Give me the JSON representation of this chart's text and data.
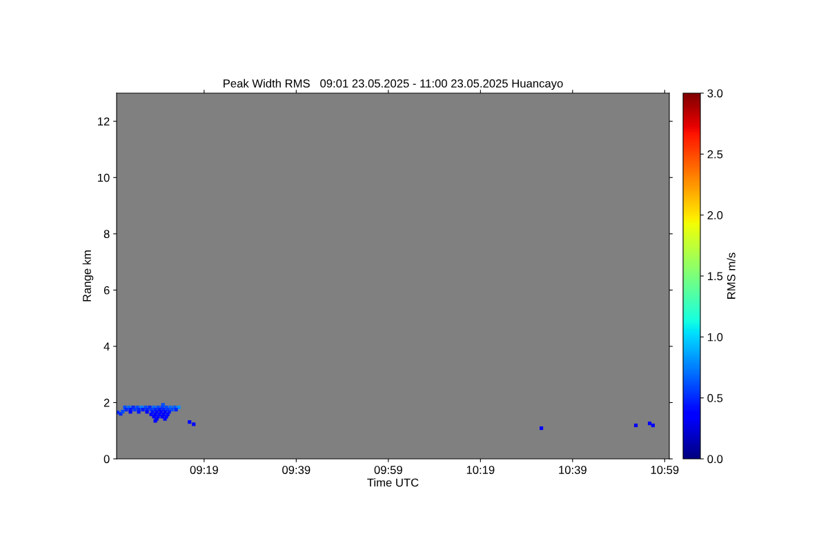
{
  "chart_data": {
    "type": "scatter",
    "title": "Peak Width RMS   09:01 23.05.2025 - 11:00 23.05.2025 Huancayo",
    "xlabel": "Time UTC",
    "ylabel": "Range km",
    "clabel": "RMS m/s",
    "xlim": [
      9.0,
      11.0
    ],
    "xticks": [
      {
        "value": 9.3167,
        "label": "09:19"
      },
      {
        "value": 9.65,
        "label": "09:39"
      },
      {
        "value": 9.9833,
        "label": "09:59"
      },
      {
        "value": 10.3167,
        "label": "10:19"
      },
      {
        "value": 10.65,
        "label": "10:39"
      },
      {
        "value": 10.9833,
        "label": "10:59"
      }
    ],
    "ylim": [
      0,
      13
    ],
    "yticks": [
      0,
      2,
      4,
      6,
      8,
      10,
      12
    ],
    "clim": [
      0,
      3
    ],
    "cticks": [
      {
        "value": 0,
        "label": "0.0"
      },
      {
        "value": 0.5,
        "label": "0.5"
      },
      {
        "value": 1,
        "label": "1.0"
      },
      {
        "value": 1.5,
        "label": "1.5"
      },
      {
        "value": 2,
        "label": "2.0"
      },
      {
        "value": 2.5,
        "label": "2.5"
      },
      {
        "value": 3,
        "label": "3.0"
      }
    ],
    "marker": "square",
    "grid": false,
    "legend": false,
    "series": [
      {
        "x": [
          9.003,
          9.015,
          9.022,
          9.03,
          9.045,
          9.06,
          9.075,
          9.09,
          9.105,
          9.12,
          9.135,
          9.15,
          9.165,
          9.18,
          9.195,
          9.21,
          9.225,
          9.035,
          9.05,
          9.065,
          9.08,
          9.095,
          9.11,
          9.125,
          9.14,
          9.155,
          9.17,
          9.185,
          9.2,
          9.215,
          9.05,
          9.08,
          9.11,
          9.13,
          9.145,
          9.16,
          9.175,
          9.19,
          9.125,
          9.14,
          9.155,
          9.17,
          9.185,
          9.135,
          9.15,
          9.165,
          9.18,
          9.145,
          9.175,
          9.14,
          9.168,
          9.264,
          9.279,
          10.537,
          10.879,
          10.929,
          10.941
        ],
        "values": [
          1.65,
          1.6,
          1.68,
          1.83,
          1.83,
          1.83,
          1.83,
          1.83,
          1.83,
          1.83,
          1.83,
          1.83,
          1.83,
          1.83,
          1.83,
          1.83,
          1.83,
          1.75,
          1.75,
          1.75,
          1.75,
          1.75,
          1.75,
          1.75,
          1.75,
          1.75,
          1.75,
          1.75,
          1.75,
          1.75,
          1.67,
          1.67,
          1.67,
          1.67,
          1.67,
          1.67,
          1.67,
          1.67,
          1.58,
          1.58,
          1.58,
          1.58,
          1.58,
          1.5,
          1.5,
          1.5,
          1.5,
          1.42,
          1.42,
          1.35,
          1.92,
          1.31,
          1.23,
          1.09,
          1.19,
          1.26,
          1.19
        ],
        "cvalues": [
          0.5,
          0.5,
          0.6,
          0.6,
          0.7,
          0.5,
          0.6,
          0.75,
          0.6,
          0.5,
          0.7,
          0.6,
          0.55,
          0.6,
          0.7,
          0.65,
          0.8,
          0.5,
          0.45,
          0.55,
          0.5,
          0.45,
          0.5,
          0.55,
          0.5,
          0.45,
          0.5,
          0.55,
          0.6,
          0.5,
          0.4,
          0.45,
          0.4,
          0.45,
          0.4,
          0.35,
          0.4,
          0.45,
          0.4,
          0.35,
          0.4,
          0.35,
          0.4,
          0.35,
          0.4,
          0.35,
          0.4,
          0.35,
          0.4,
          0.4,
          0.6,
          0.4,
          0.4,
          0.35,
          0.3,
          0.35,
          0.35
        ]
      }
    ]
  }
}
